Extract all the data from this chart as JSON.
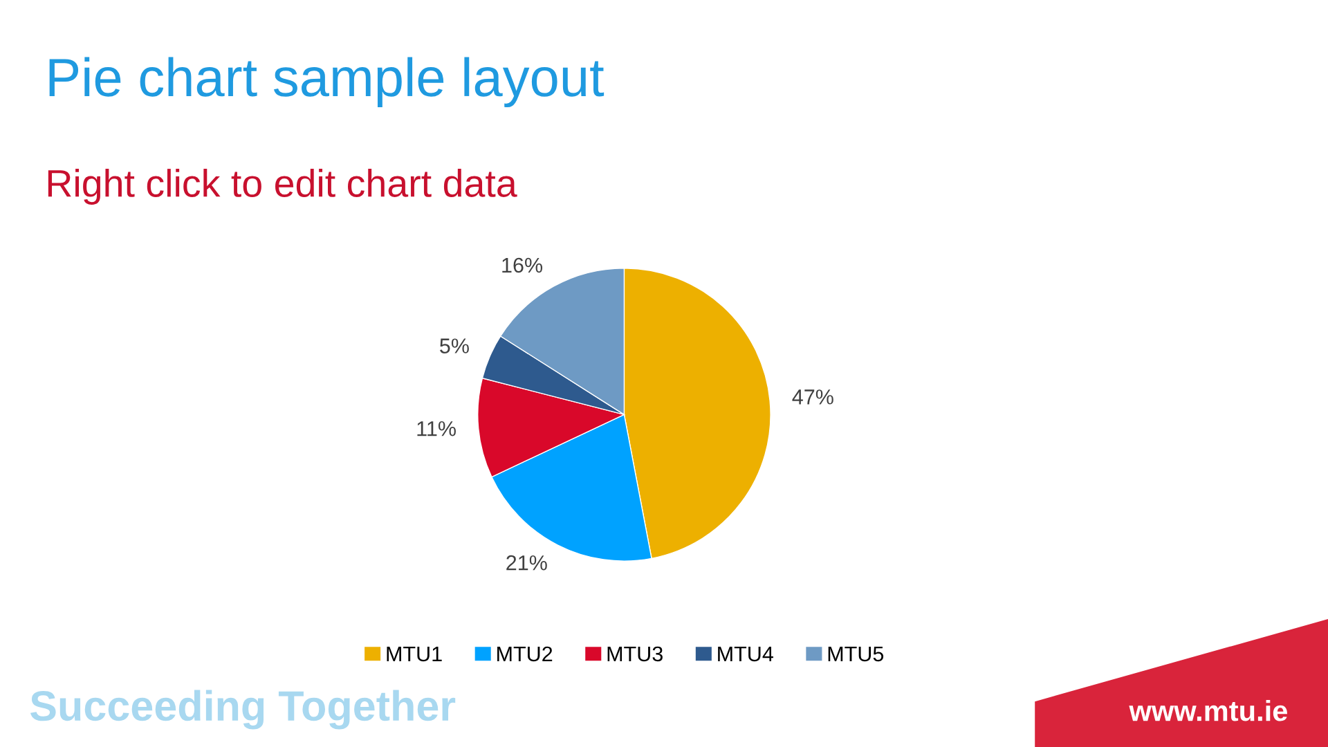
{
  "chart_data": {
    "type": "pie",
    "title": "Pie chart sample layout",
    "subtitle": "Right click to edit chart data",
    "categories": [
      "MTU1",
      "MTU2",
      "MTU3",
      "MTU4",
      "MTU5"
    ],
    "values": [
      47,
      21,
      11,
      5,
      16
    ],
    "colors": [
      "#edb000",
      "#00a2ff",
      "#d9082a",
      "#2e5a8e",
      "#6e9ac4"
    ],
    "value_labels": [
      "47%",
      "21%",
      "11%",
      "5%",
      "16%"
    ],
    "legend": "bottom",
    "annotations": [
      "Succeeding Together",
      "www.mtu.ie"
    ]
  }
}
